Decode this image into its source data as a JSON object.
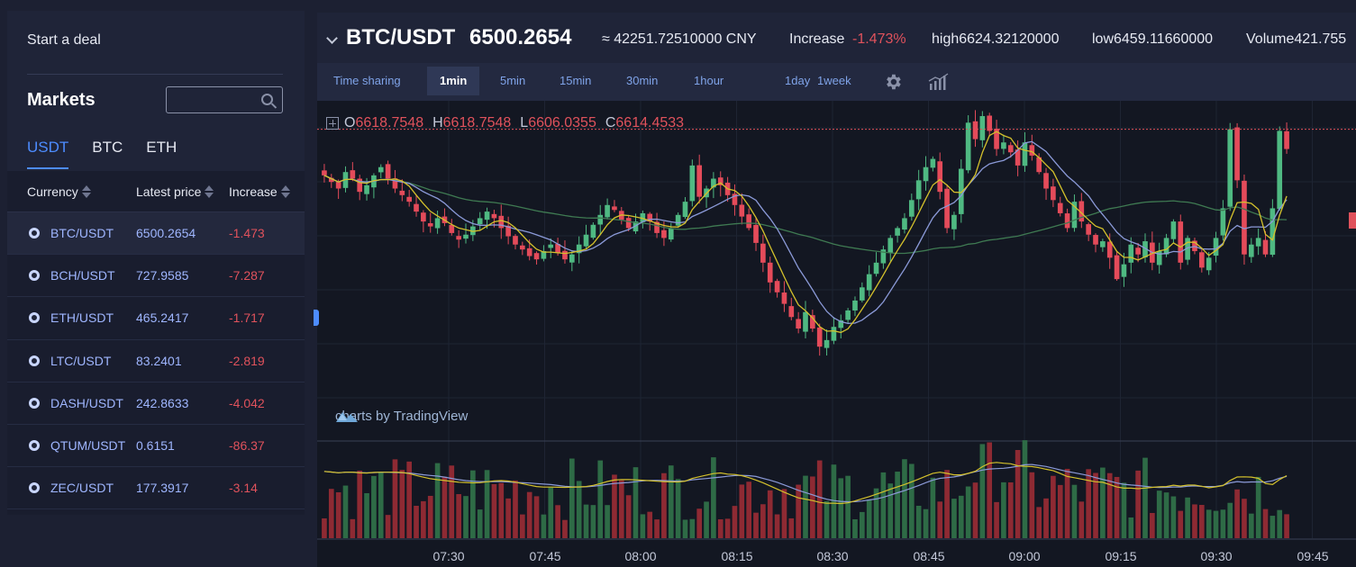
{
  "sidebar": {
    "deal_label": "Start a deal",
    "markets_title": "Markets",
    "search": {
      "value": "",
      "placeholder": ""
    },
    "tabs": [
      {
        "label": "USDT",
        "active": true
      },
      {
        "label": "BTC",
        "active": false
      },
      {
        "label": "ETH",
        "active": false
      }
    ],
    "table": {
      "headers": {
        "currency": "Currency",
        "price": "Latest price",
        "increase": "Increase"
      },
      "rows": [
        {
          "pair": "BTC/USDT",
          "price": "6500.2654",
          "increase": "-1.473",
          "selected": true
        },
        {
          "pair": "BCH/USDT",
          "price": "727.9585",
          "increase": "-7.287",
          "selected": false
        },
        {
          "pair": "ETH/USDT",
          "price": "465.2417",
          "increase": "-1.717",
          "selected": false
        },
        {
          "pair": "LTC/USDT",
          "price": "83.2401",
          "increase": "-2.819",
          "selected": false
        },
        {
          "pair": "DASH/USDT",
          "price": "242.8633",
          "increase": "-4.042",
          "selected": false
        },
        {
          "pair": "QTUM/USDT",
          "price": "0.6151",
          "increase": "-86.37",
          "selected": false
        },
        {
          "pair": "ZEC/USDT",
          "price": "177.3917",
          "increase": "-3.14",
          "selected": false
        }
      ]
    }
  },
  "header": {
    "pair": "BTC/USDT",
    "price": "6500.2654",
    "cny": "≈ 42251.72510000 CNY",
    "increase_label": "Increase",
    "increase_value": "-1.473%",
    "high": "high6624.32120000",
    "low": "low6459.11660000",
    "volume": "Volume421.755"
  },
  "toolbar": {
    "timeframes": [
      {
        "label": "Time sharing",
        "active": false
      },
      {
        "label": "1min",
        "active": true
      },
      {
        "label": "5min",
        "active": false
      },
      {
        "label": "15min",
        "active": false
      },
      {
        "label": "30min",
        "active": false
      },
      {
        "label": "1hour",
        "active": false
      },
      {
        "label": "1day",
        "active": false
      },
      {
        "label": "1week",
        "active": false
      }
    ],
    "settings_icon": "gear-icon",
    "indicators_icon": "bar-chart-icon"
  },
  "chart": {
    "ohlc": {
      "o_label": "O",
      "o": "6618.7548",
      "h_label": "H",
      "h": "6618.7548",
      "l_label": "L",
      "l": "6606.0355",
      "c_label": "C",
      "c": "6614.4533"
    },
    "brand": "charts by TradingView",
    "x_ticks": [
      "07:30",
      "07:45",
      "08:00",
      "08:15",
      "08:30",
      "08:45",
      "09:00",
      "09:15",
      "09:30",
      "09:45"
    ],
    "colors": {
      "up": "#4fb982",
      "down": "#e44b5a",
      "ma_fast": "#d4c12c",
      "ma_slow": "#8b9ad8",
      "ma_long": "#3f7a52",
      "background": "#131722"
    }
  },
  "chart_data": {
    "type": "candlestick",
    "symbol": "BTC/USDT",
    "interval": "1min",
    "x_range": [
      "07:20",
      "09:45"
    ],
    "y_range": [
      6440,
      6640
    ],
    "current_price_line": 6626,
    "candles_close": [
      6598,
      6594,
      6590,
      6600,
      6596,
      6588,
      6592,
      6598,
      6603,
      6596,
      6590,
      6586,
      6582,
      6576,
      6570,
      6567,
      6572,
      6569,
      6563,
      6559,
      6562,
      6567,
      6572,
      6576,
      6572,
      6566,
      6561,
      6556,
      6553,
      6549,
      6547,
      6552,
      6556,
      6551,
      6547,
      6550,
      6556,
      6562,
      6568,
      6574,
      6580,
      6577,
      6571,
      6566,
      6570,
      6575,
      6570,
      6563,
      6560,
      6566,
      6574,
      6582,
      6604,
      6585,
      6590,
      6596,
      6592,
      6586,
      6580,
      6573,
      6566,
      6557,
      6545,
      6533,
      6527,
      6520,
      6512,
      6505,
      6515,
      6505,
      6494,
      6498,
      6506,
      6510,
      6516,
      6522,
      6530,
      6538,
      6545,
      6553,
      6560,
      6566,
      6572,
      6583,
      6595,
      6603,
      6608,
      6588,
      6566,
      6574,
      6602,
      6630,
      6620,
      6634,
      6625,
      6614,
      6618,
      6612,
      6604,
      6618,
      6610,
      6600,
      6590,
      6583,
      6575,
      6566,
      6582,
      6570,
      6562,
      6556,
      6558,
      6548,
      6535,
      6544,
      6556,
      6550,
      6558,
      6545,
      6552,
      6560,
      6570,
      6545,
      6560,
      6552,
      6542,
      6548,
      6560,
      6578,
      6626,
      6595,
      6550,
      6556,
      6560,
      6550,
      6578,
      6625,
      6614
    ],
    "volume": "relative bars, green up / red down"
  }
}
